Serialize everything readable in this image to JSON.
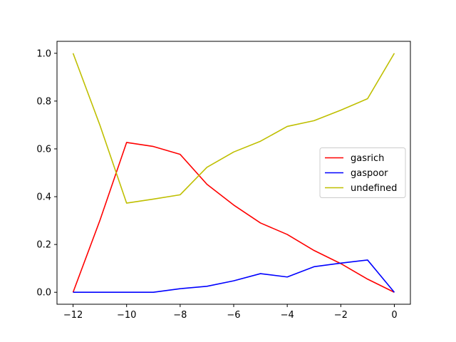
{
  "chart_data": {
    "type": "line",
    "title": "",
    "xlabel": "",
    "ylabel": "",
    "x": [
      -12,
      -11,
      -10,
      -9,
      -8,
      -7,
      -6,
      -5,
      -4,
      -3,
      -2,
      -1,
      0
    ],
    "xlim": [
      -12.6,
      0.6
    ],
    "ylim": [
      -0.05,
      1.05
    ],
    "xticks": [
      -12,
      -10,
      -8,
      -6,
      -4,
      -2,
      0
    ],
    "xtick_labels": [
      "−12",
      "−10",
      "−8",
      "−6",
      "−4",
      "−2",
      "0"
    ],
    "yticks": [
      0.0,
      0.2,
      0.4,
      0.6,
      0.8,
      1.0
    ],
    "ytick_labels": [
      "0.0",
      "0.2",
      "0.4",
      "0.6",
      "0.8",
      "1.0"
    ],
    "grid": false,
    "legend_position": "center-right",
    "series": [
      {
        "name": "gasrich",
        "color": "#ff0000",
        "values": [
          0.0,
          0.3,
          0.627,
          0.61,
          0.577,
          0.452,
          0.365,
          0.29,
          0.242,
          0.175,
          0.12,
          0.055,
          0.0
        ]
      },
      {
        "name": "gaspoor",
        "color": "#0000ff",
        "values": [
          0.0,
          0.0,
          0.0,
          0.0,
          0.015,
          0.025,
          0.048,
          0.078,
          0.064,
          0.107,
          0.122,
          0.135,
          0.0
        ]
      },
      {
        "name": "undefined",
        "color": "#bfbf00",
        "values": [
          1.0,
          0.7,
          0.373,
          0.39,
          0.408,
          0.523,
          0.587,
          0.632,
          0.694,
          0.718,
          0.762,
          0.81,
          1.0
        ]
      }
    ]
  }
}
